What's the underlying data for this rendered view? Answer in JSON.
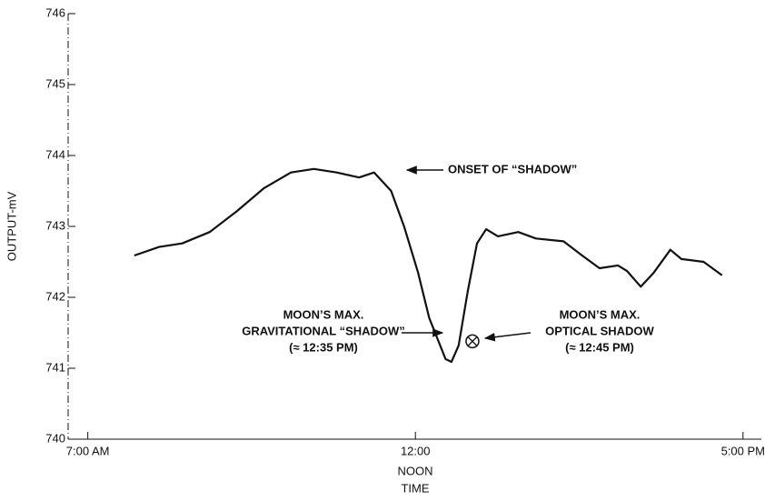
{
  "chart_data": {
    "type": "line",
    "xlabel": "TIME",
    "ylabel": "OUTPUT-mV",
    "x": [
      7.71,
      8.09,
      8.44,
      8.86,
      9.27,
      9.69,
      10.1,
      10.45,
      10.8,
      11.14,
      11.37,
      11.63,
      11.83,
      12.04,
      12.21,
      12.46,
      12.55,
      12.66,
      12.8,
      12.94,
      13.08,
      13.26,
      13.57,
      13.84,
      14.26,
      14.53,
      14.81,
      15.09,
      15.23,
      15.44,
      15.64,
      15.89,
      16.06,
      16.4,
      16.68
    ],
    "values": [
      742.59,
      742.71,
      742.76,
      742.92,
      743.21,
      743.54,
      743.76,
      743.81,
      743.76,
      743.69,
      743.76,
      743.5,
      742.99,
      742.35,
      741.71,
      741.13,
      741.09,
      741.32,
      742.09,
      742.76,
      742.96,
      742.86,
      742.92,
      742.83,
      742.79,
      742.6,
      742.41,
      742.45,
      742.37,
      742.15,
      742.35,
      742.67,
      742.54,
      742.5,
      742.31
    ],
    "color": "#111111",
    "xlim": [
      6.7,
      17.28
    ],
    "xticks": [
      {
        "value": 7,
        "label": "7:00 AM"
      },
      {
        "value": 12,
        "label": "12:00"
      },
      {
        "value": 17,
        "label": "5:00 PM"
      }
    ],
    "xtick_note": "NOON",
    "ylim": [
      740,
      746
    ],
    "yticks": [
      740,
      741,
      742,
      743,
      744,
      745,
      746
    ],
    "optical_max": {
      "x": 12.87,
      "y": 741.38
    },
    "annotations": [
      {
        "lines": [
          "ONSET OF “SHADOW”"
        ]
      },
      {
        "lines": [
          "MOON’S MAX.",
          "GRAVITATIONAL “SHADOW”",
          "(≈ 12:35 PM)"
        ]
      },
      {
        "lines": [
          "MOON’S MAX.",
          "OPTICAL SHADOW",
          "(≈ 12:45 PM)"
        ]
      }
    ]
  }
}
